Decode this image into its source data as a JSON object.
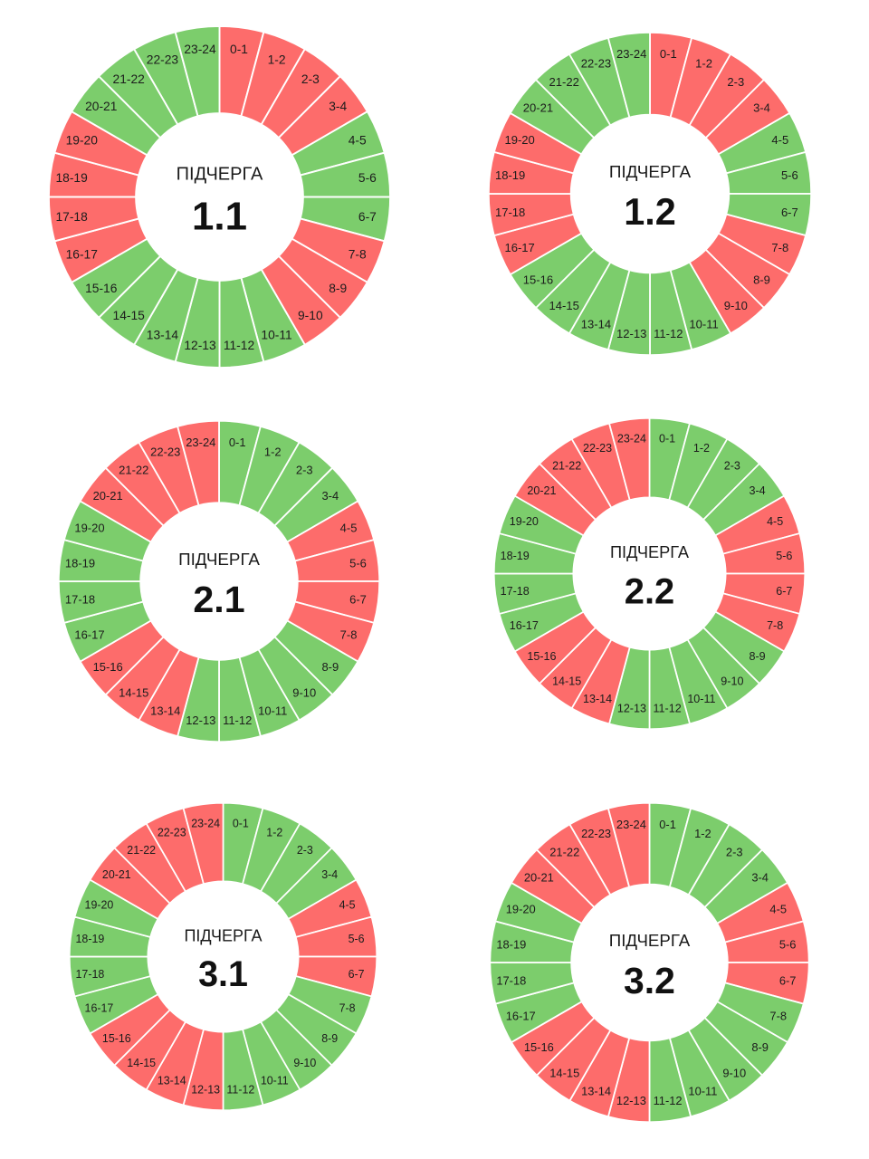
{
  "colors": {
    "on": "#7ccd6c",
    "off": "#fd6c6b",
    "separator": "#ffffff"
  },
  "chart_data": [
    {
      "type": "pie",
      "donut": true,
      "center_label": "ПІДЧЕРГА",
      "center_number": "1.1",
      "categories": [
        "0-1",
        "1-2",
        "2-3",
        "3-4",
        "4-5",
        "5-6",
        "6-7",
        "7-8",
        "8-9",
        "9-10",
        "10-11",
        "11-12",
        "12-13",
        "13-14",
        "14-15",
        "15-16",
        "16-17",
        "17-18",
        "18-19",
        "19-20",
        "20-21",
        "21-22",
        "22-23",
        "23-24"
      ],
      "states": [
        "off",
        "off",
        "off",
        "off",
        "on",
        "on",
        "on",
        "off",
        "off",
        "off",
        "on",
        "on",
        "on",
        "on",
        "on",
        "on",
        "off",
        "off",
        "off",
        "off",
        "on",
        "on",
        "on",
        "on"
      ]
    },
    {
      "type": "pie",
      "donut": true,
      "center_label": "ПІДЧЕРГА",
      "center_number": "1.2",
      "categories": [
        "0-1",
        "1-2",
        "2-3",
        "3-4",
        "4-5",
        "5-6",
        "6-7",
        "7-8",
        "8-9",
        "9-10",
        "10-11",
        "11-12",
        "12-13",
        "13-14",
        "14-15",
        "15-16",
        "16-17",
        "17-18",
        "18-19",
        "19-20",
        "20-21",
        "21-22",
        "22-23",
        "23-24"
      ],
      "states": [
        "off",
        "off",
        "off",
        "off",
        "on",
        "on",
        "on",
        "off",
        "off",
        "off",
        "on",
        "on",
        "on",
        "on",
        "on",
        "on",
        "off",
        "off",
        "off",
        "off",
        "on",
        "on",
        "on",
        "on"
      ]
    },
    {
      "type": "pie",
      "donut": true,
      "center_label": "ПІДЧЕРГА",
      "center_number": "2.1",
      "categories": [
        "0-1",
        "1-2",
        "2-3",
        "3-4",
        "4-5",
        "5-6",
        "6-7",
        "7-8",
        "8-9",
        "9-10",
        "10-11",
        "11-12",
        "12-13",
        "13-14",
        "14-15",
        "15-16",
        "16-17",
        "17-18",
        "18-19",
        "19-20",
        "20-21",
        "21-22",
        "22-23",
        "23-24"
      ],
      "states": [
        "on",
        "on",
        "on",
        "on",
        "off",
        "off",
        "off",
        "off",
        "on",
        "on",
        "on",
        "on",
        "on",
        "off",
        "off",
        "off",
        "on",
        "on",
        "on",
        "on",
        "off",
        "off",
        "off",
        "off"
      ]
    },
    {
      "type": "pie",
      "donut": true,
      "center_label": "ПІДЧЕРГА",
      "center_number": "2.2",
      "categories": [
        "0-1",
        "1-2",
        "2-3",
        "3-4",
        "4-5",
        "5-6",
        "6-7",
        "7-8",
        "8-9",
        "9-10",
        "10-11",
        "11-12",
        "12-13",
        "13-14",
        "14-15",
        "15-16",
        "16-17",
        "17-18",
        "18-19",
        "19-20",
        "20-21",
        "21-22",
        "22-23",
        "23-24"
      ],
      "states": [
        "on",
        "on",
        "on",
        "on",
        "off",
        "off",
        "off",
        "off",
        "on",
        "on",
        "on",
        "on",
        "on",
        "off",
        "off",
        "off",
        "on",
        "on",
        "on",
        "on",
        "off",
        "off",
        "off",
        "off"
      ]
    },
    {
      "type": "pie",
      "donut": true,
      "center_label": "ПІДЧЕРГА",
      "center_number": "3.1",
      "categories": [
        "0-1",
        "1-2",
        "2-3",
        "3-4",
        "4-5",
        "5-6",
        "6-7",
        "7-8",
        "8-9",
        "9-10",
        "10-11",
        "11-12",
        "12-13",
        "13-14",
        "14-15",
        "15-16",
        "16-17",
        "17-18",
        "18-19",
        "19-20",
        "20-21",
        "21-22",
        "22-23",
        "23-24"
      ],
      "states": [
        "on",
        "on",
        "on",
        "on",
        "off",
        "off",
        "off",
        "on",
        "on",
        "on",
        "on",
        "on",
        "off",
        "off",
        "off",
        "off",
        "on",
        "on",
        "on",
        "on",
        "off",
        "off",
        "off",
        "off"
      ]
    },
    {
      "type": "pie",
      "donut": true,
      "center_label": "ПІДЧЕРГА",
      "center_number": "3.2",
      "categories": [
        "0-1",
        "1-2",
        "2-3",
        "3-4",
        "4-5",
        "5-6",
        "6-7",
        "7-8",
        "8-9",
        "9-10",
        "10-11",
        "11-12",
        "12-13",
        "13-14",
        "14-15",
        "15-16",
        "16-17",
        "17-18",
        "18-19",
        "19-20",
        "20-21",
        "21-22",
        "22-23",
        "23-24"
      ],
      "states": [
        "on",
        "on",
        "on",
        "on",
        "off",
        "off",
        "off",
        "on",
        "on",
        "on",
        "on",
        "on",
        "off",
        "off",
        "off",
        "off",
        "on",
        "on",
        "on",
        "on",
        "off",
        "off",
        "off",
        "off"
      ]
    }
  ]
}
